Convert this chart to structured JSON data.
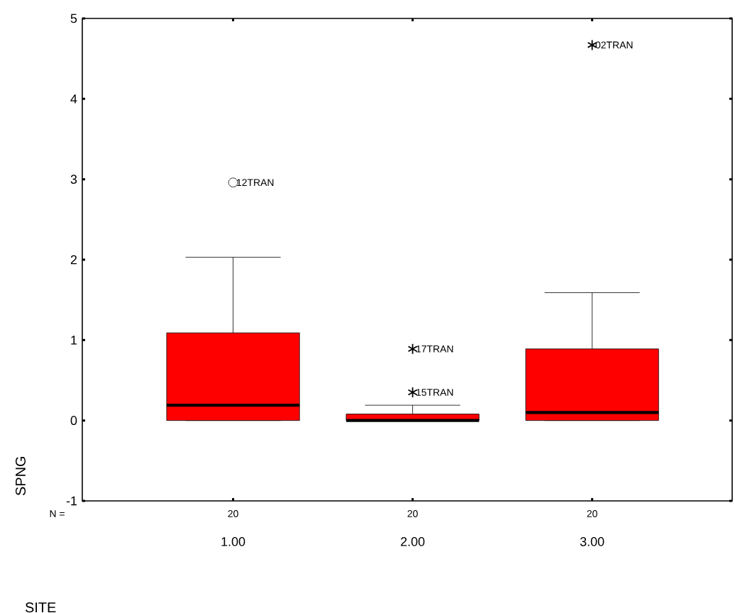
{
  "chart_data": {
    "type": "box",
    "xlabel": "SITE",
    "ylabel": "SPNG",
    "categories": [
      "1.00",
      "2.00",
      "3.00"
    ],
    "ylim": [
      -1,
      5
    ],
    "yticks": [
      -1,
      0,
      1,
      2,
      3,
      4,
      5
    ],
    "grid": false,
    "boxes": [
      {
        "low": 0,
        "q1": 0,
        "median": 0.19,
        "q3": 1.09,
        "high": 2.03,
        "outliers": [
          2.96
        ]
      },
      {
        "low": 0,
        "q1": 0,
        "median": 0,
        "q3": 0.08,
        "high": 0.19
      },
      {
        "low": 0,
        "q1": 0,
        "median": 0.1,
        "q3": 0.89,
        "high": 1.59
      }
    ],
    "color": "#ff0000",
    "marker": "circle",
    "series": [
      {
        "type": "scatter",
        "marker": "cross",
        "color": "#000000",
        "x": [
          "2.00",
          "2.00",
          "3.00"
        ],
        "values": [
          0.89,
          0.35,
          4.67
        ]
      }
    ],
    "annotations": [
      "N =",
      "20",
      "20",
      "20",
      "12TRAN",
      {
        "text": "17TRAN",
        "x": "2.00",
        "y": 0.89
      },
      {
        "text": "15TRAN",
        "x": "2.00",
        "y": 0.35
      },
      {
        "text": "02TRAN",
        "x": "3.00",
        "y": 4.67
      }
    ]
  }
}
